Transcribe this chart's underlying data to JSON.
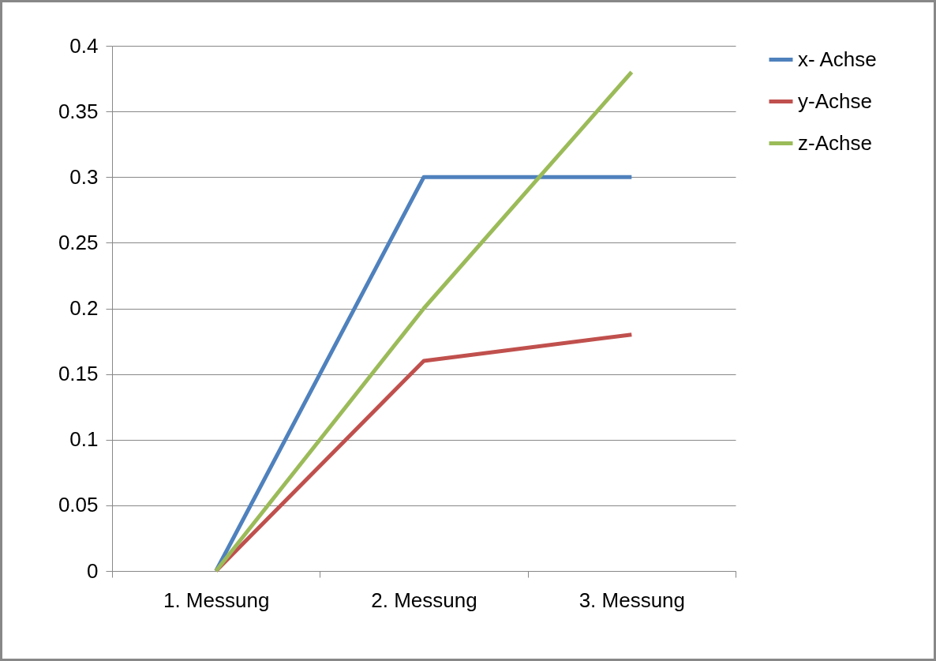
{
  "chart_data": {
    "type": "line",
    "categories": [
      "1. Messung",
      "2. Messung",
      "3. Messung"
    ],
    "series": [
      {
        "name": "x- Achse",
        "color": "#4f81bd",
        "values": [
          0,
          0.3,
          0.3
        ]
      },
      {
        "name": "y-Achse",
        "color": "#c0504d",
        "values": [
          0,
          0.16,
          0.18
        ]
      },
      {
        "name": "z-Achse",
        "color": "#9bbb59",
        "values": [
          0,
          0.2,
          0.38
        ]
      }
    ],
    "ylim": [
      0,
      0.4
    ],
    "yticks": [
      0,
      0.05,
      0.1,
      0.15,
      0.2,
      0.25,
      0.3,
      0.35,
      0.4
    ],
    "grid": "y",
    "legend": "right",
    "marker": "none",
    "line_style": "solid"
  }
}
